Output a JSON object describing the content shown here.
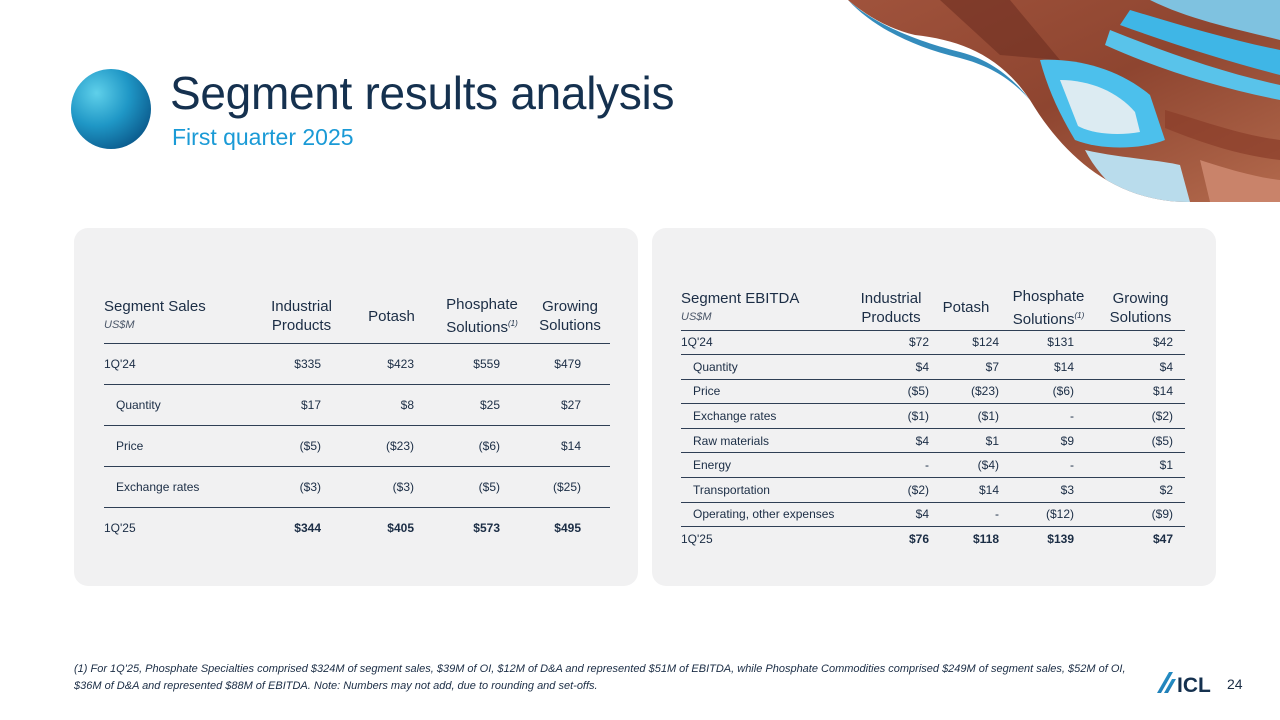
{
  "header": {
    "title": "Segment results analysis",
    "subtitle": "First quarter 2025"
  },
  "sales_table": {
    "title": "Segment Sales",
    "unit": "US$M",
    "columns": [
      {
        "l1": "Industrial",
        "l2": "Products"
      },
      {
        "l1": "Potash",
        "l2": ""
      },
      {
        "l1": "Phosphate",
        "l2": "Solutions",
        "sup": "(1)"
      },
      {
        "l1": "Growing",
        "l2": "Solutions"
      }
    ],
    "rows": [
      {
        "label": "1Q'24",
        "values": [
          "$335",
          "$423",
          "$559",
          "$479"
        ]
      },
      {
        "label": "Quantity",
        "values": [
          "$17",
          "$8",
          "$25",
          "$27"
        ]
      },
      {
        "label": "Price",
        "values": [
          "($5)",
          "($23)",
          "($6)",
          "$14"
        ]
      },
      {
        "label": "Exchange rates",
        "values": [
          "($3)",
          "($3)",
          "($5)",
          "($25)"
        ]
      },
      {
        "label": "1Q'25",
        "values": [
          "$344",
          "$405",
          "$573",
          "$495"
        ]
      }
    ]
  },
  "ebitda_table": {
    "title": "Segment EBITDA",
    "unit": "US$M",
    "columns": [
      {
        "l1": "Industrial",
        "l2": "Products"
      },
      {
        "l1": "Potash",
        "l2": ""
      },
      {
        "l1": "Phosphate",
        "l2": "Solutions",
        "sup": "(1)"
      },
      {
        "l1": "Growing",
        "l2": "Solutions"
      }
    ],
    "rows": [
      {
        "label": "1Q'24",
        "values": [
          "$72",
          "$124",
          "$131",
          "$42"
        ]
      },
      {
        "label": "Quantity",
        "values": [
          "$4",
          "$7",
          "$14",
          "$4"
        ]
      },
      {
        "label": "Price",
        "values": [
          "($5)",
          "($23)",
          "($6)",
          "$14"
        ]
      },
      {
        "label": "Exchange rates",
        "values": [
          "($1)",
          "($1)",
          "-",
          "($2)"
        ]
      },
      {
        "label": "Raw materials",
        "values": [
          "$4",
          "$1",
          "$9",
          "($5)"
        ]
      },
      {
        "label": "Energy",
        "values": [
          "-",
          "($4)",
          "-",
          "$1"
        ]
      },
      {
        "label": "Transportation",
        "values": [
          "($2)",
          "$14",
          "$3",
          "$2"
        ]
      },
      {
        "label": "Operating, other expenses",
        "values": [
          "$4",
          "-",
          "($12)",
          "($9)"
        ]
      },
      {
        "label": "1Q'25",
        "values": [
          "$76",
          "$118",
          "$139",
          "$47"
        ]
      }
    ]
  },
  "footnote": "(1) For 1Q'25, Phosphate Specialties comprised $324M of segment sales, $39M of OI, $12M of D&A and represented $51M of EBITDA, while Phosphate Commodities comprised $249M of segment sales, $52M of OI, $36M of D&A and represented $88M of EBITDA. Note: Numbers may not add, due to rounding and set-offs.",
  "footer": {
    "logo": "ICL",
    "page_number": "24"
  },
  "colors": {
    "title": "#15314f",
    "accent": "#1a9ad6",
    "panel": "#f1f1f2",
    "text": "#1b2d45"
  }
}
